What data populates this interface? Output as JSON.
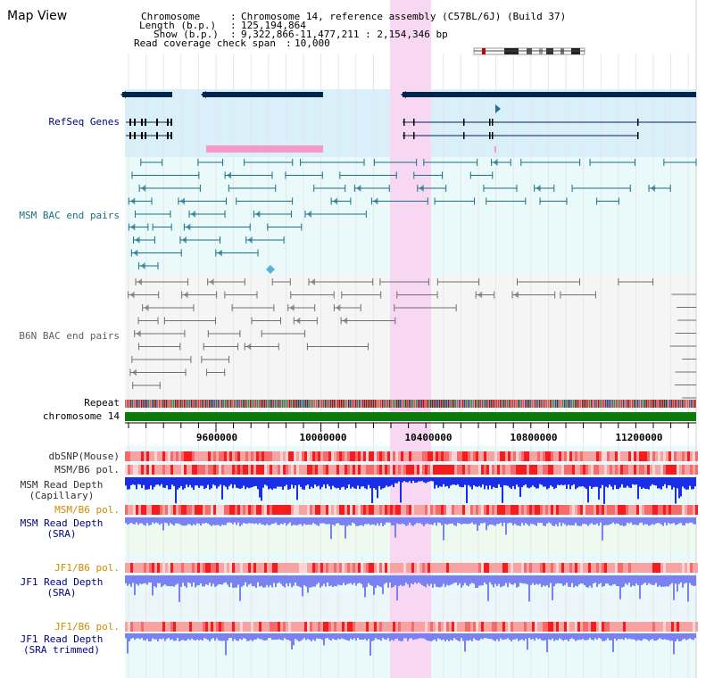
{
  "title": "Map View",
  "header": {
    "chromosome_key": "Chromosome",
    "chromosome_value": "Chromosome 14, reference assembly (C57BL/6J) (Build 37)",
    "length_key": "Length (b.p.)",
    "length_value": "125,194,864",
    "show_key": "Show (b.p.)",
    "show_value": "9,322,866-11,477,211 : 2,154,346 bp",
    "coverage_key": "Read coverage check span",
    "coverage_value": "10,000"
  },
  "tracks": {
    "refseq_label": "RefSeq Genes",
    "msm_bac_label": "MSM BAC end pairs",
    "b6n_bac_label": "B6N BAC end pairs",
    "repeat_label": "Repeat",
    "chromosome_label": "chromosome 14",
    "dbsnp_label": "dbSNP(Mouse)",
    "msm_pol_label": "MSM/B6 pol.",
    "msm_depth_cap_label_1": "MSM Read Depth",
    "msm_depth_cap_label_2": "(Capillary)",
    "msm_pol2_label": "MSM/B6 pol.",
    "msm_depth_sra_label_1": "MSM Read Depth",
    "msm_depth_sra_label_2": "(SRA)",
    "jf1_pol_label": "JF1/B6 pol.",
    "jf1_depth_label_1": "JF1 Read Depth",
    "jf1_depth_label_2": "(SRA)",
    "jf1_pol2_label": "JF1/B6 pol.",
    "jf1_trim_label_1": "JF1 Read Depth",
    "jf1_trim_label_2": "(SRA trimmed)"
  },
  "axis": {
    "ticks": [
      "9600000",
      "10000000",
      "10400000",
      "10800000",
      "11200000"
    ]
  },
  "colors": {
    "highlight": "#f7d7f1",
    "refseq": "#00264d",
    "msm_bac": "#1a6f88",
    "b6n_bac": "#707070",
    "chromosome": "#0a7a0a",
    "depth_cap": "#1a2ee8",
    "depth_sra": "#7a82f2",
    "label_navy": "#000080",
    "label_orange": "#d08a00"
  }
}
